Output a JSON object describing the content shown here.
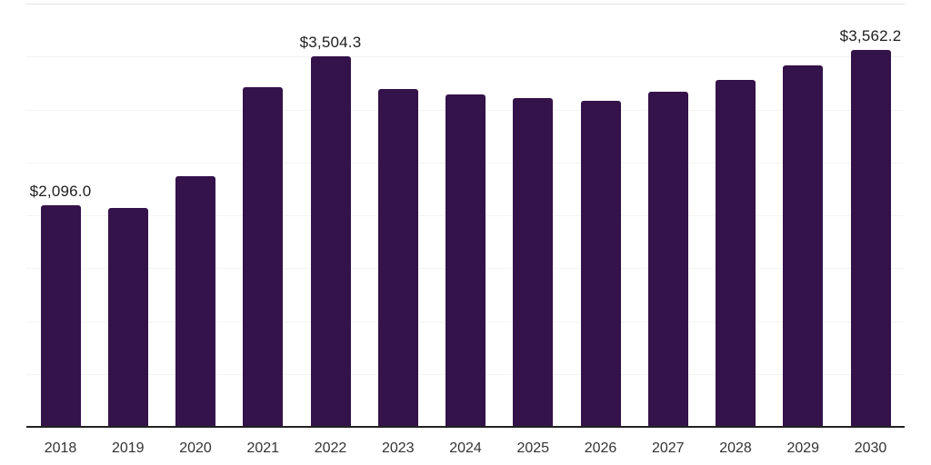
{
  "chart_data": {
    "type": "bar",
    "title": "",
    "xlabel": "",
    "ylabel": "",
    "categories": [
      "2018",
      "2019",
      "2020",
      "2021",
      "2022",
      "2023",
      "2024",
      "2025",
      "2026",
      "2027",
      "2028",
      "2029",
      "2030"
    ],
    "values": [
      2096.0,
      2070,
      2370,
      3210,
      3504.3,
      3195,
      3145,
      3110,
      3085,
      3170,
      3280,
      3415,
      3562.2
    ],
    "value_labels": {
      "0": "$2,096.0",
      "4": "$3,504.3",
      "12": "$3,562.2"
    },
    "ylim": [
      0,
      4000
    ],
    "gridline_step": 500,
    "grid": "horizontal-light",
    "legend": "none",
    "colors": {
      "bar": "#34124A",
      "axis_line": "#222222",
      "gridline": "#f4f3f6",
      "top_gridline": "#e7e6ea",
      "value_label": "#1f1f1f",
      "tick_label": "#333333",
      "background": "#ffffff"
    }
  }
}
